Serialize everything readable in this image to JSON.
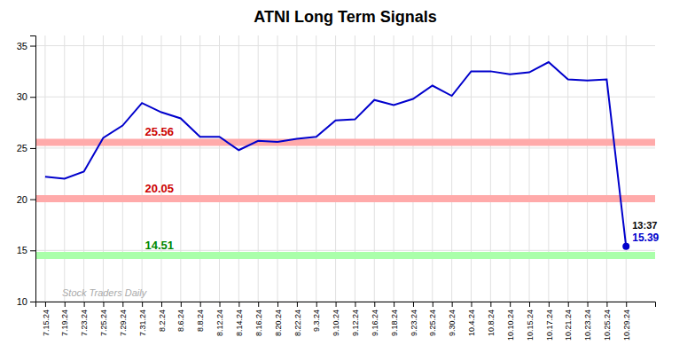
{
  "chart_data": {
    "type": "line",
    "title": "ATNI Long Term Signals",
    "categories": [
      "7.15.24",
      "7.19.24",
      "7.23.24",
      "7.25.24",
      "7.29.24",
      "7.31.24",
      "8.2.24",
      "8.6.24",
      "8.8.24",
      "8.12.24",
      "8.14.24",
      "8.16.24",
      "8.20.24",
      "8.22.24",
      "9.3.24",
      "9.10.24",
      "9.12.24",
      "9.16.24",
      "9.18.24",
      "9.23.24",
      "9.25.24",
      "9.30.24",
      "10.4.24",
      "10.8.24",
      "10.10.24",
      "10.15.24",
      "10.17.24",
      "10.21.24",
      "10.23.24",
      "10.25.24",
      "10.29.24"
    ],
    "values": [
      22.2,
      22.0,
      22.7,
      26.0,
      27.2,
      29.4,
      28.5,
      27.9,
      26.1,
      26.1,
      24.8,
      25.7,
      25.6,
      25.9,
      26.1,
      27.7,
      27.8,
      29.7,
      29.2,
      29.8,
      31.1,
      30.1,
      32.5,
      32.5,
      32.2,
      32.4,
      33.4,
      31.7,
      31.6,
      31.7,
      15.39
    ],
    "color": "#0000cc",
    "ylim": [
      10,
      36
    ],
    "yticks": [
      10,
      15,
      20,
      25,
      30,
      35
    ],
    "grid": true,
    "hlines": [
      {
        "value": 25.56,
        "label": "25.56",
        "color": "#ffaaaa",
        "label_color": "#cc0000"
      },
      {
        "value": 20.05,
        "label": "20.05",
        "color": "#ffaaaa",
        "label_color": "#cc0000"
      },
      {
        "value": 14.51,
        "label": "14.51",
        "color": "#aaffaa",
        "label_color": "#008800"
      }
    ],
    "annotations": [
      {
        "text": "13:37",
        "color": "#000000"
      },
      {
        "text": "15.39",
        "color": "#0000cc"
      }
    ],
    "watermark": {
      "text": "Stock Traders Daily",
      "color": "#aaaaaa"
    }
  }
}
